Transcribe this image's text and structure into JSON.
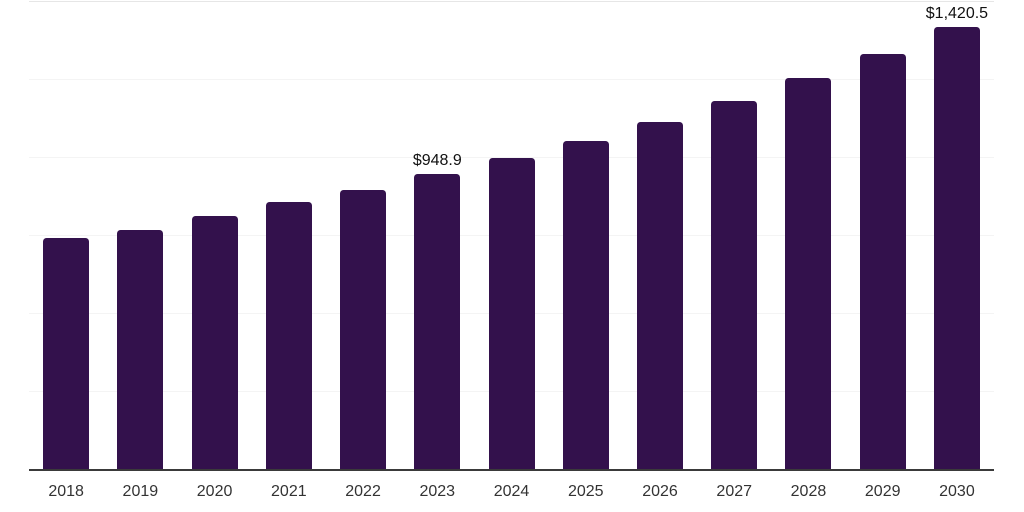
{
  "chart_data": {
    "type": "bar",
    "title": "",
    "xlabel": "",
    "ylabel": "",
    "categories": [
      "2018",
      "2019",
      "2020",
      "2021",
      "2022",
      "2023",
      "2024",
      "2025",
      "2026",
      "2027",
      "2028",
      "2029",
      "2030"
    ],
    "values": [
      745,
      770,
      814,
      858,
      897,
      948.9,
      1001,
      1055,
      1117,
      1183,
      1255,
      1332,
      1420.5
    ],
    "data_labels": [
      {
        "index": 5,
        "text": "$948.9"
      },
      {
        "index": 12,
        "text": "$1,420.5"
      }
    ],
    "ylim": [
      0,
      1500
    ],
    "gridline_step": 250,
    "grid": "horizontal",
    "y_tick_labels_visible": false,
    "legend_position": "none"
  },
  "colors": {
    "bar": "#33114C",
    "axis_line": "#3a3a3a",
    "gridline": "#f4f4f4",
    "plot_top_border": "#e6e6e6",
    "data_label_text": "#111111",
    "tick_label_text": "#333333",
    "background": "#ffffff"
  }
}
